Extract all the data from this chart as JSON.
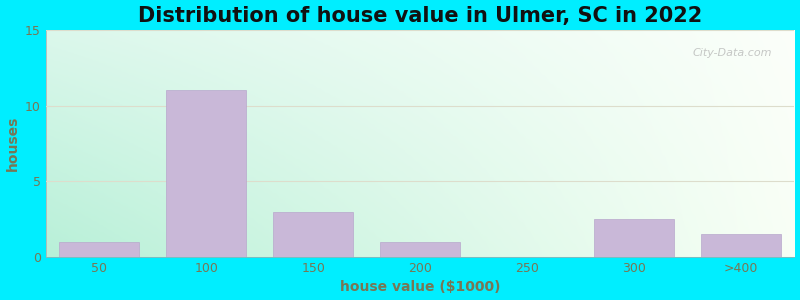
{
  "title": "Distribution of house value in Ulmer, SC in 2022",
  "xlabel": "house value ($1000)",
  "ylabel": "houses",
  "bar_labels": [
    "50",
    "100",
    "150",
    "200",
    "250",
    "300",
    ">400"
  ],
  "bar_values": [
    1,
    11,
    3,
    1,
    0,
    2.5,
    1.5
  ],
  "bar_color": "#c9b8d8",
  "bar_edgecolor": "#b8a8cc",
  "ylim": [
    0,
    15
  ],
  "yticks": [
    0,
    5,
    10,
    15
  ],
  "background_color": "#00eeff",
  "title_fontsize": 15,
  "axis_label_fontsize": 10,
  "tick_fontsize": 9,
  "watermark_text": "City-Data.com",
  "bar_width": 0.75,
  "label_color": "#777755",
  "tick_color": "#777755",
  "title_color": "#111111",
  "grid_color": "#ddddcc",
  "gradient_left": "#b8f0d8",
  "gradient_right": "#f0f8ee",
  "gradient_top": "#f5f8f0",
  "gradient_bottom": "#c8f0e0"
}
